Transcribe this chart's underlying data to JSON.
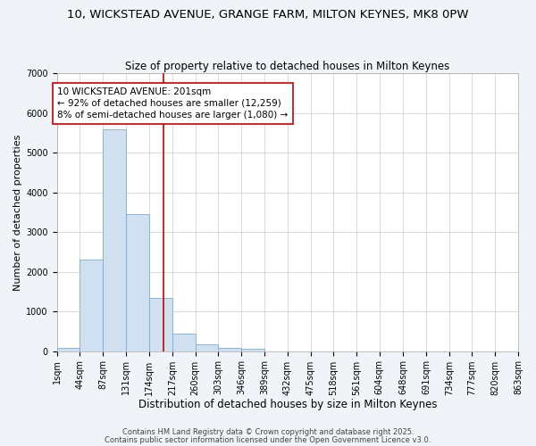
{
  "title1": "10, WICKSTEAD AVENUE, GRANGE FARM, MILTON KEYNES, MK8 0PW",
  "title2": "Size of property relative to detached houses in Milton Keynes",
  "xlabel": "Distribution of detached houses by size in Milton Keynes",
  "ylabel": "Number of detached properties",
  "bin_edges": [
    1,
    44,
    87,
    131,
    174,
    217,
    260,
    303,
    346,
    389,
    432,
    475,
    518,
    561,
    604,
    648,
    691,
    734,
    777,
    820,
    863
  ],
  "bin_labels": [
    "1sqm",
    "44sqm",
    "87sqm",
    "131sqm",
    "174sqm",
    "217sqm",
    "260sqm",
    "303sqm",
    "346sqm",
    "389sqm",
    "432sqm",
    "475sqm",
    "518sqm",
    "561sqm",
    "604sqm",
    "648sqm",
    "691sqm",
    "734sqm",
    "777sqm",
    "820sqm",
    "863sqm"
  ],
  "bar_heights": [
    70,
    2300,
    5580,
    3450,
    1330,
    450,
    170,
    80,
    50,
    0,
    0,
    0,
    0,
    0,
    0,
    0,
    0,
    0,
    0,
    0
  ],
  "bar_color": "#d0e0f0",
  "bar_edge_color": "#7aafd4",
  "vline_x": 201,
  "vline_color": "#cc0000",
  "ylim": [
    0,
    7000
  ],
  "yticks": [
    0,
    1000,
    2000,
    3000,
    4000,
    5000,
    6000,
    7000
  ],
  "annotation_text": "10 WICKSTEAD AVENUE: 201sqm\n← 92% of detached houses are smaller (12,259)\n8% of semi-detached houses are larger (1,080) →",
  "annotation_box_color": "#ffffff",
  "annotation_box_edge": "#cc0000",
  "grid_color": "#cccccc",
  "plot_bg_color": "#ffffff",
  "fig_bg_color": "#f0f4f8",
  "footer1": "Contains HM Land Registry data © Crown copyright and database right 2025.",
  "footer2": "Contains public sector information licensed under the Open Government Licence v3.0.",
  "title_fontsize": 9.5,
  "title2_fontsize": 8.5,
  "xlabel_fontsize": 8.5,
  "ylabel_fontsize": 8,
  "tick_fontsize": 7,
  "annotation_fontsize": 7.5,
  "footer_fontsize": 6
}
